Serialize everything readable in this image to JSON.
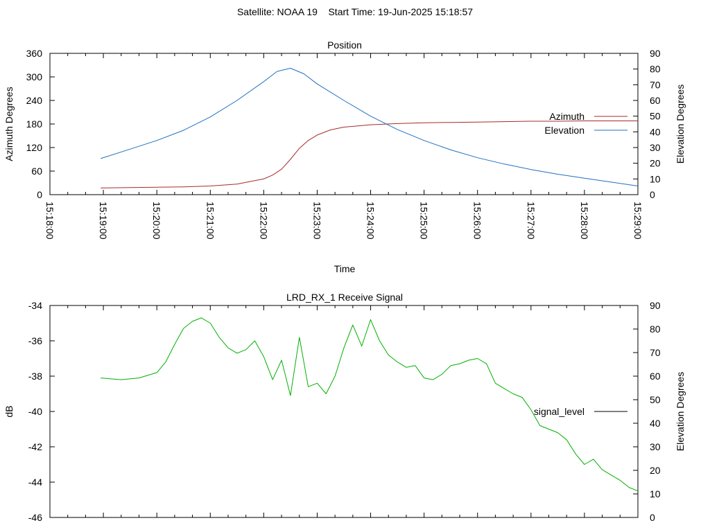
{
  "page_title": "Satellite: NOAA 19    Start Time: 19-Jun-2025 15:18:57",
  "chart_data": [
    {
      "type": "line",
      "title": "Position",
      "xlabel": "Time",
      "ylabel": "Azimuth Degrees",
      "y2label": "Elevation Degrees",
      "x_ticks": [
        "15:18:00",
        "15:19:00",
        "15:20:00",
        "15:21:00",
        "15:22:00",
        "15:23:00",
        "15:24:00",
        "15:25:00",
        "15:26:00",
        "15:27:00",
        "15:28:00",
        "15:29:00"
      ],
      "xlim": [
        "15:18:00",
        "15:29:00"
      ],
      "ylim": [
        0,
        360
      ],
      "y_ticks": [
        0,
        60,
        120,
        180,
        240,
        300,
        360
      ],
      "y2lim": [
        0,
        90
      ],
      "y2_ticks": [
        0,
        10,
        20,
        30,
        40,
        50,
        60,
        70,
        80,
        90
      ],
      "legend_position": "right",
      "grid": false,
      "series": [
        {
          "name": "Azimuth",
          "axis": "y",
          "color": "#a52a2a",
          "x": [
            "15:18:57",
            "15:19:30",
            "15:20:00",
            "15:20:30",
            "15:21:00",
            "15:21:30",
            "15:22:00",
            "15:22:10",
            "15:22:20",
            "15:22:30",
            "15:22:40",
            "15:22:50",
            "15:23:00",
            "15:23:15",
            "15:23:30",
            "15:24:00",
            "15:24:30",
            "15:25:00",
            "15:25:30",
            "15:26:00",
            "15:26:30",
            "15:27:00",
            "15:27:30",
            "15:28:00",
            "15:28:30",
            "15:29:00"
          ],
          "values": [
            17,
            18,
            19,
            20,
            22,
            27,
            40,
            50,
            65,
            90,
            118,
            138,
            152,
            165,
            172,
            178,
            181,
            183,
            184,
            185,
            186,
            187,
            187,
            188,
            188,
            188
          ]
        },
        {
          "name": "Elevation",
          "axis": "y2",
          "color": "#1f6fbf",
          "x": [
            "15:18:57",
            "15:19:30",
            "15:20:00",
            "15:20:30",
            "15:21:00",
            "15:21:30",
            "15:22:00",
            "15:22:15",
            "15:22:30",
            "15:22:45",
            "15:23:00",
            "15:23:30",
            "15:24:00",
            "15:24:30",
            "15:25:00",
            "15:25:30",
            "15:26:00",
            "15:26:30",
            "15:27:00",
            "15:27:30",
            "15:28:00",
            "15:28:30",
            "15:29:00"
          ],
          "values": [
            23,
            29,
            34.5,
            41,
            49.5,
            60,
            72,
            78.5,
            80.5,
            77,
            70.5,
            60,
            50,
            41.5,
            34.5,
            28.5,
            23.5,
            19.5,
            16,
            13,
            10.5,
            8,
            5.5
          ]
        }
      ]
    },
    {
      "type": "line",
      "title": "LRD_RX_1 Receive Signal",
      "ylabel": "dB",
      "y2label": "Elevation Degrees",
      "xlim": [
        "15:18:00",
        "15:29:00"
      ],
      "ylim": [
        -46,
        -34
      ],
      "y_ticks": [
        -46,
        -44,
        -42,
        -40,
        -38,
        -36,
        -34
      ],
      "y2lim": [
        0,
        90
      ],
      "y2_ticks": [
        0,
        10,
        20,
        30,
        40,
        50,
        60,
        70,
        80,
        90
      ],
      "legend_position": "right",
      "grid": false,
      "series": [
        {
          "name": "signal_level",
          "color": "#00b000",
          "x": [
            "15:18:57",
            "15:19:20",
            "15:19:40",
            "15:20:00",
            "15:20:10",
            "15:20:20",
            "15:20:30",
            "15:20:40",
            "15:20:50",
            "15:21:00",
            "15:21:10",
            "15:21:20",
            "15:21:30",
            "15:21:40",
            "15:21:50",
            "15:22:00",
            "15:22:10",
            "15:22:20",
            "15:22:30",
            "15:22:40",
            "15:22:50",
            "15:23:00",
            "15:23:10",
            "15:23:20",
            "15:23:30",
            "15:23:40",
            "15:23:50",
            "15:24:00",
            "15:24:10",
            "15:24:20",
            "15:24:30",
            "15:24:40",
            "15:24:50",
            "15:25:00",
            "15:25:10",
            "15:25:20",
            "15:25:30",
            "15:25:40",
            "15:25:50",
            "15:26:00",
            "15:26:10",
            "15:26:20",
            "15:26:30",
            "15:26:40",
            "15:26:50",
            "15:27:00",
            "15:27:10",
            "15:27:20",
            "15:27:30",
            "15:27:40",
            "15:27:50",
            "15:28:00",
            "15:28:10",
            "15:28:20",
            "15:28:30",
            "15:28:40",
            "15:28:50",
            "15:29:00"
          ],
          "values": [
            -38.1,
            -38.2,
            -38.1,
            -37.8,
            -37.2,
            -36.2,
            -35.3,
            -34.9,
            -34.7,
            -35.0,
            -35.8,
            -36.4,
            -36.7,
            -36.5,
            -36.0,
            -36.9,
            -38.2,
            -37.1,
            -39.1,
            -35.8,
            -38.6,
            -38.4,
            -39.0,
            -38.0,
            -36.4,
            -35.1,
            -36.3,
            -34.8,
            -36.0,
            -36.8,
            -37.2,
            -37.5,
            -37.4,
            -38.1,
            -38.2,
            -37.9,
            -37.4,
            -37.3,
            -37.1,
            -37.0,
            -37.3,
            -38.4,
            -38.7,
            -39.0,
            -39.2,
            -39.9,
            -40.8,
            -41.0,
            -41.2,
            -41.6,
            -42.4,
            -43.0,
            -42.7,
            -43.3,
            -43.6,
            -43.9,
            -44.3,
            -44.5
          ]
        }
      ]
    }
  ]
}
